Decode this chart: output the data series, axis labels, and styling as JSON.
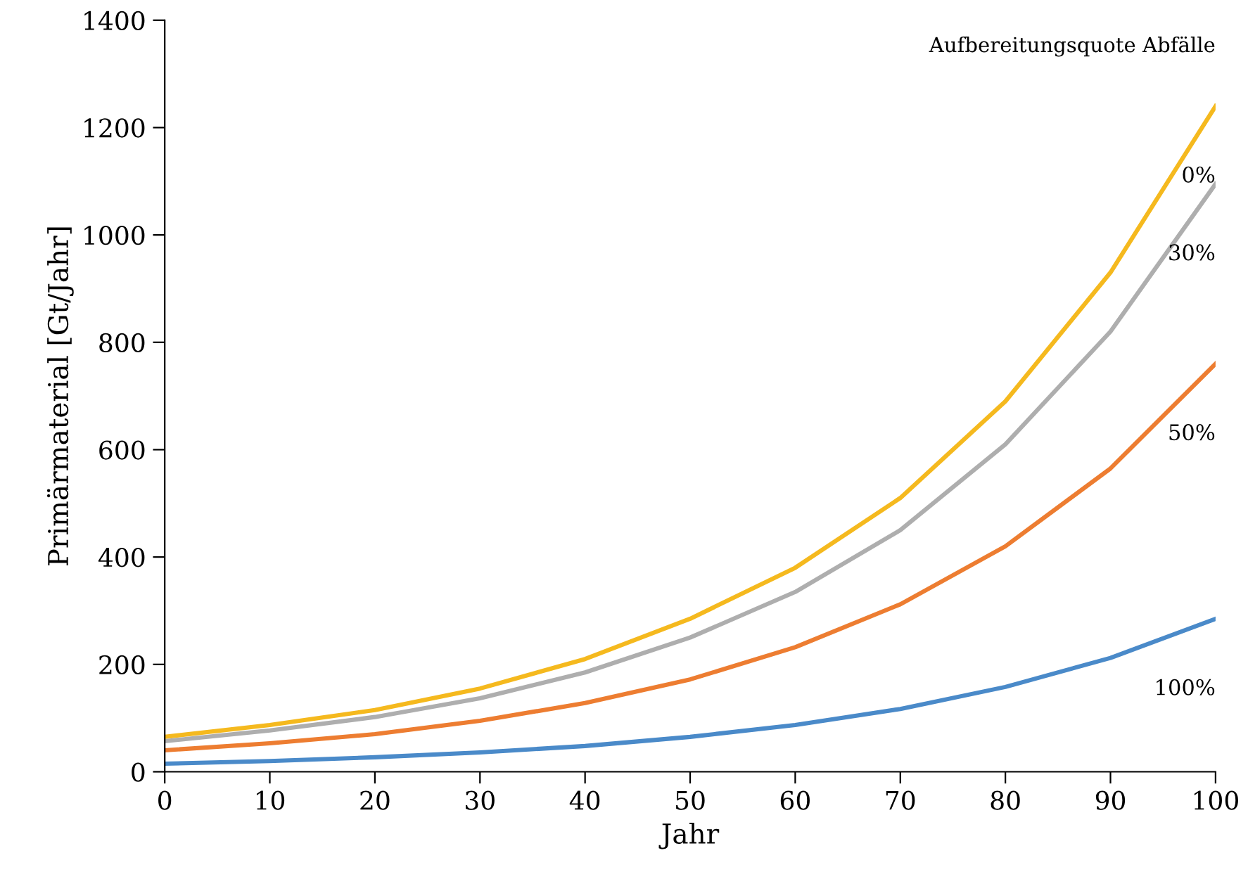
{
  "chart_data": {
    "type": "line",
    "xlabel": "Jahr",
    "ylabel": "Primärmaterial [Gt/Jahr]",
    "x": [
      0,
      10,
      20,
      30,
      40,
      50,
      60,
      70,
      80,
      90,
      100
    ],
    "xlim": [
      0,
      100
    ],
    "xticks": [
      0,
      10,
      20,
      30,
      40,
      50,
      60,
      70,
      80,
      90,
      100
    ],
    "ylim": [
      0,
      1400
    ],
    "yticks": [
      0,
      200,
      400,
      600,
      800,
      1000,
      1200,
      1400
    ],
    "grid": false,
    "legend": false,
    "marker": "none",
    "line_style": "solid",
    "annotations": [
      "Aufbereitungsquote Abfälle"
    ],
    "series": [
      {
        "name": "0%",
        "color": "#f5b91e",
        "values": [
          65,
          87,
          115,
          155,
          210,
          285,
          380,
          510,
          690,
          930,
          1240
        ]
      },
      {
        "name": "30%",
        "color": "#aeaeae",
        "values": [
          57,
          77,
          102,
          137,
          185,
          250,
          335,
          450,
          610,
          820,
          1095
        ]
      },
      {
        "name": "50%",
        "color": "#ed7d31",
        "values": [
          40,
          53,
          70,
          95,
          128,
          172,
          232,
          312,
          420,
          565,
          760
        ]
      },
      {
        "name": "100%",
        "color": "#4a8ac9",
        "values": [
          15,
          20,
          27,
          36,
          48,
          65,
          87,
          117,
          158,
          212,
          285
        ]
      }
    ]
  }
}
